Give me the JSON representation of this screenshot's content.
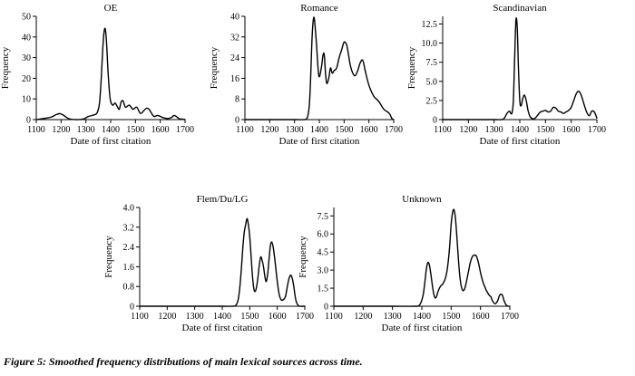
{
  "figure": {
    "caption": "Figure 5: Smoothed frequency distributions of main lexical sources across time."
  },
  "chart_data": [
    {
      "type": "line",
      "title": "OE",
      "xlabel": "Date of first citation",
      "ylabel": "Frequency",
      "xlim": [
        1100,
        1700
      ],
      "ylim": [
        0,
        50
      ],
      "xticks": [
        1100,
        1200,
        1300,
        1400,
        1500,
        1600,
        1700
      ],
      "yticks": [
        0,
        10,
        20,
        30,
        40,
        50
      ],
      "ytick_labels": [
        "0",
        "10",
        "20",
        "30",
        "40",
        "50"
      ],
      "series": [
        {
          "x": [
            1100,
            1130,
            1160,
            1180,
            1195,
            1210,
            1230,
            1260,
            1290,
            1310,
            1330,
            1345,
            1355,
            1362,
            1368,
            1373,
            1378,
            1383,
            1390,
            1398,
            1408,
            1418,
            1428,
            1435,
            1442,
            1450,
            1460,
            1475,
            1490,
            1505,
            1520,
            1535,
            1545,
            1555,
            1565,
            1575,
            1590,
            1610,
            1630,
            1645,
            1655,
            1665,
            1675,
            1690,
            1700
          ],
          "y": [
            0,
            0.5,
            1.2,
            2.4,
            2.9,
            2.1,
            0.5,
            0,
            0.3,
            1.5,
            2.2,
            3.2,
            8,
            20,
            34,
            42,
            44,
            38,
            22,
            10,
            7,
            8,
            6,
            5,
            8.5,
            9,
            6,
            7,
            5,
            6,
            3,
            4.5,
            5.5,
            5,
            3,
            1.5,
            2,
            1,
            0.5,
            1,
            2,
            1.5,
            0.5,
            0.2,
            0
          ]
        }
      ]
    },
    {
      "type": "line",
      "title": "Romance",
      "xlabel": "Date of first citation",
      "ylabel": "Frequency",
      "xlim": [
        1100,
        1700
      ],
      "ylim": [
        0,
        40
      ],
      "xticks": [
        1100,
        1200,
        1300,
        1400,
        1500,
        1600,
        1700
      ],
      "yticks": [
        0,
        8,
        16,
        24,
        32,
        40
      ],
      "ytick_labels": [
        "0",
        "8",
        "16",
        "24",
        "32",
        "40"
      ],
      "series": [
        {
          "x": [
            1100,
            1200,
            1300,
            1340,
            1350,
            1355,
            1360,
            1365,
            1370,
            1375,
            1380,
            1388,
            1398,
            1408,
            1415,
            1420,
            1425,
            1430,
            1438,
            1445,
            1452,
            1460,
            1470,
            1480,
            1490,
            1500,
            1510,
            1518,
            1525,
            1535,
            1545,
            1555,
            1565,
            1575,
            1585,
            1595,
            1605,
            1620,
            1640,
            1660,
            1675,
            1685,
            1692,
            1700
          ],
          "y": [
            0,
            0,
            0,
            0,
            0.5,
            2,
            6,
            16,
            30,
            38,
            39,
            30,
            17,
            20,
            25,
            25,
            18,
            14,
            16,
            20,
            18,
            19,
            20,
            24,
            27,
            30,
            29,
            25,
            21,
            18,
            17,
            19,
            22,
            23,
            19,
            15,
            12,
            9,
            7,
            4,
            3,
            2,
            0.5,
            0
          ]
        }
      ]
    },
    {
      "type": "line",
      "title": "Scandinavian",
      "xlabel": "Date of first citation",
      "ylabel": "Frequency",
      "xlim": [
        1100,
        1700
      ],
      "ylim": [
        0,
        13.5
      ],
      "xticks": [
        1100,
        1200,
        1300,
        1400,
        1500,
        1600,
        1700
      ],
      "yticks": [
        0,
        2.5,
        5.0,
        7.5,
        10.0,
        12.5
      ],
      "ytick_labels": [
        "0",
        "2.5",
        "5.0",
        "7.5",
        "10.0",
        "12.5"
      ],
      "series": [
        {
          "x": [
            1100,
            1200,
            1300,
            1330,
            1340,
            1350,
            1360,
            1365,
            1370,
            1375,
            1380,
            1385,
            1390,
            1395,
            1400,
            1405,
            1412,
            1418,
            1425,
            1432,
            1440,
            1450,
            1460,
            1470,
            1480,
            1490,
            1500,
            1510,
            1520,
            1530,
            1540,
            1550,
            1560,
            1570,
            1580,
            1590,
            1600,
            1610,
            1620,
            1630,
            1640,
            1650,
            1660,
            1670,
            1680,
            1690,
            1700
          ],
          "y": [
            0,
            0,
            0,
            0,
            0.2,
            0.8,
            1.1,
            0.8,
            0.9,
            2.5,
            8,
            13,
            12,
            6.5,
            2.5,
            1.8,
            2.8,
            3.2,
            2.5,
            1.2,
            0.4,
            0.1,
            0.2,
            0.6,
            1.0,
            1.1,
            1.2,
            1.0,
            1.1,
            1.6,
            1.5,
            1.1,
            1.0,
            0.8,
            1.0,
            1.2,
            1.6,
            2.5,
            3.4,
            3.7,
            3.1,
            2.0,
            1.0,
            0.5,
            1.1,
            1.0,
            0.2
          ]
        }
      ]
    },
    {
      "type": "line",
      "title": "Flem/Du/LG",
      "xlabel": "Date of first citation",
      "ylabel": "Frequency",
      "xlim": [
        1100,
        1700
      ],
      "ylim": [
        0,
        4.0
      ],
      "xticks": [
        1100,
        1200,
        1300,
        1400,
        1500,
        1600,
        1700
      ],
      "yticks": [
        0,
        0.8,
        1.6,
        2.4,
        3.2,
        4.0
      ],
      "ytick_labels": [
        "0",
        "0.8",
        "1.6",
        "2.4",
        "3.2",
        "4.0"
      ],
      "series": [
        {
          "x": [
            1100,
            1200,
            1300,
            1400,
            1440,
            1450,
            1455,
            1460,
            1465,
            1470,
            1475,
            1480,
            1485,
            1490,
            1495,
            1500,
            1505,
            1510,
            1515,
            1520,
            1525,
            1530,
            1535,
            1540,
            1545,
            1550,
            1555,
            1560,
            1565,
            1570,
            1575,
            1580,
            1585,
            1590,
            1595,
            1600,
            1605,
            1610,
            1615,
            1620,
            1625,
            1630,
            1635,
            1640,
            1645,
            1650,
            1655,
            1660,
            1665,
            1670,
            1675,
            1680,
            1690,
            1700
          ],
          "y": [
            0,
            0,
            0,
            0,
            0,
            0.05,
            0.15,
            0.4,
            0.9,
            1.6,
            2.4,
            3.0,
            3.3,
            3.55,
            3.3,
            2.8,
            2.0,
            1.2,
            0.7,
            0.6,
            0.8,
            1.2,
            1.7,
            2.0,
            1.85,
            1.6,
            1.2,
            1.0,
            1.3,
            1.9,
            2.45,
            2.6,
            2.4,
            2.0,
            1.5,
            1.0,
            0.6,
            0.35,
            0.25,
            0.25,
            0.3,
            0.4,
            0.7,
            1.0,
            1.2,
            1.25,
            1.1,
            0.8,
            0.4,
            0.15,
            0.05,
            0,
            0,
            0
          ]
        }
      ]
    },
    {
      "type": "line",
      "title": "Unknown",
      "xlabel": "Date of first citation",
      "ylabel": "Frequency",
      "xlim": [
        1100,
        1700
      ],
      "ylim": [
        0,
        8.2
      ],
      "xticks": [
        1100,
        1200,
        1300,
        1400,
        1500,
        1600,
        1700
      ],
      "yticks": [
        0,
        1.5,
        3.0,
        4.5,
        6.0,
        7.5
      ],
      "ytick_labels": [
        "0",
        "1.5",
        "3.0",
        "4.5",
        "6.0",
        "7.5"
      ],
      "series": [
        {
          "x": [
            1100,
            1200,
            1300,
            1380,
            1390,
            1395,
            1400,
            1405,
            1410,
            1415,
            1420,
            1425,
            1430,
            1435,
            1440,
            1445,
            1450,
            1455,
            1460,
            1465,
            1470,
            1475,
            1480,
            1485,
            1490,
            1495,
            1500,
            1505,
            1510,
            1515,
            1520,
            1525,
            1530,
            1535,
            1540,
            1545,
            1550,
            1555,
            1560,
            1565,
            1570,
            1575,
            1580,
            1585,
            1590,
            1595,
            1600,
            1605,
            1610,
            1615,
            1620,
            1625,
            1630,
            1635,
            1640,
            1645,
            1650,
            1655,
            1660,
            1665,
            1670,
            1675,
            1680,
            1685,
            1690,
            1695,
            1700
          ],
          "y": [
            0,
            0,
            0,
            0,
            0.05,
            0.2,
            0.5,
            1.0,
            1.9,
            3.0,
            3.6,
            3.5,
            2.8,
            1.9,
            1.1,
            0.7,
            0.8,
            1.2,
            1.5,
            1.7,
            1.8,
            2.0,
            2.3,
            2.8,
            3.7,
            5.0,
            6.8,
            7.8,
            8.0,
            7.2,
            5.6,
            3.8,
            2.4,
            1.6,
            1.3,
            1.4,
            1.8,
            2.4,
            3.0,
            3.6,
            4.0,
            4.2,
            4.25,
            4.2,
            3.9,
            3.4,
            2.8,
            2.3,
            1.9,
            1.6,
            1.3,
            1.1,
            0.9,
            0.8,
            0.5,
            0.3,
            0.2,
            0.3,
            0.55,
            0.9,
            1.0,
            0.9,
            0.5,
            0.2,
            0.05,
            0,
            0
          ]
        }
      ]
    }
  ]
}
